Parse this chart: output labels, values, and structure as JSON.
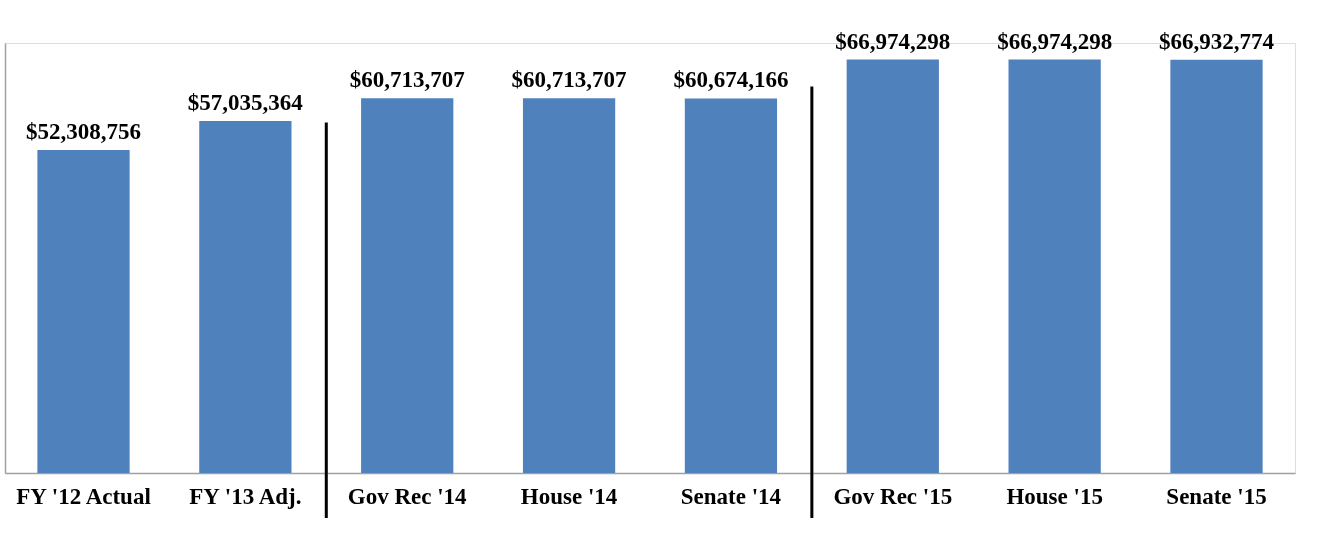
{
  "chart_data": {
    "type": "bar",
    "relative": false,
    "categories": [
      "FY '12 Actual",
      "FY '13 Adj.",
      "Gov Rec '14",
      "House '14",
      "Senate '14",
      "Gov Rec '15",
      "House '15",
      "Senate '15"
    ],
    "values": [
      52308756,
      57035364,
      60713707,
      60713707,
      60674166,
      66974298,
      66974298,
      66932774
    ],
    "value_labels": [
      "$52,308,756",
      "$57,035,364",
      "$60,713,707",
      "$60,713,707",
      "$60,674,166",
      "$66,974,298",
      "$66,974,298",
      "$66,932,774"
    ],
    "color": "#4f81bd",
    "grid": false
  }
}
